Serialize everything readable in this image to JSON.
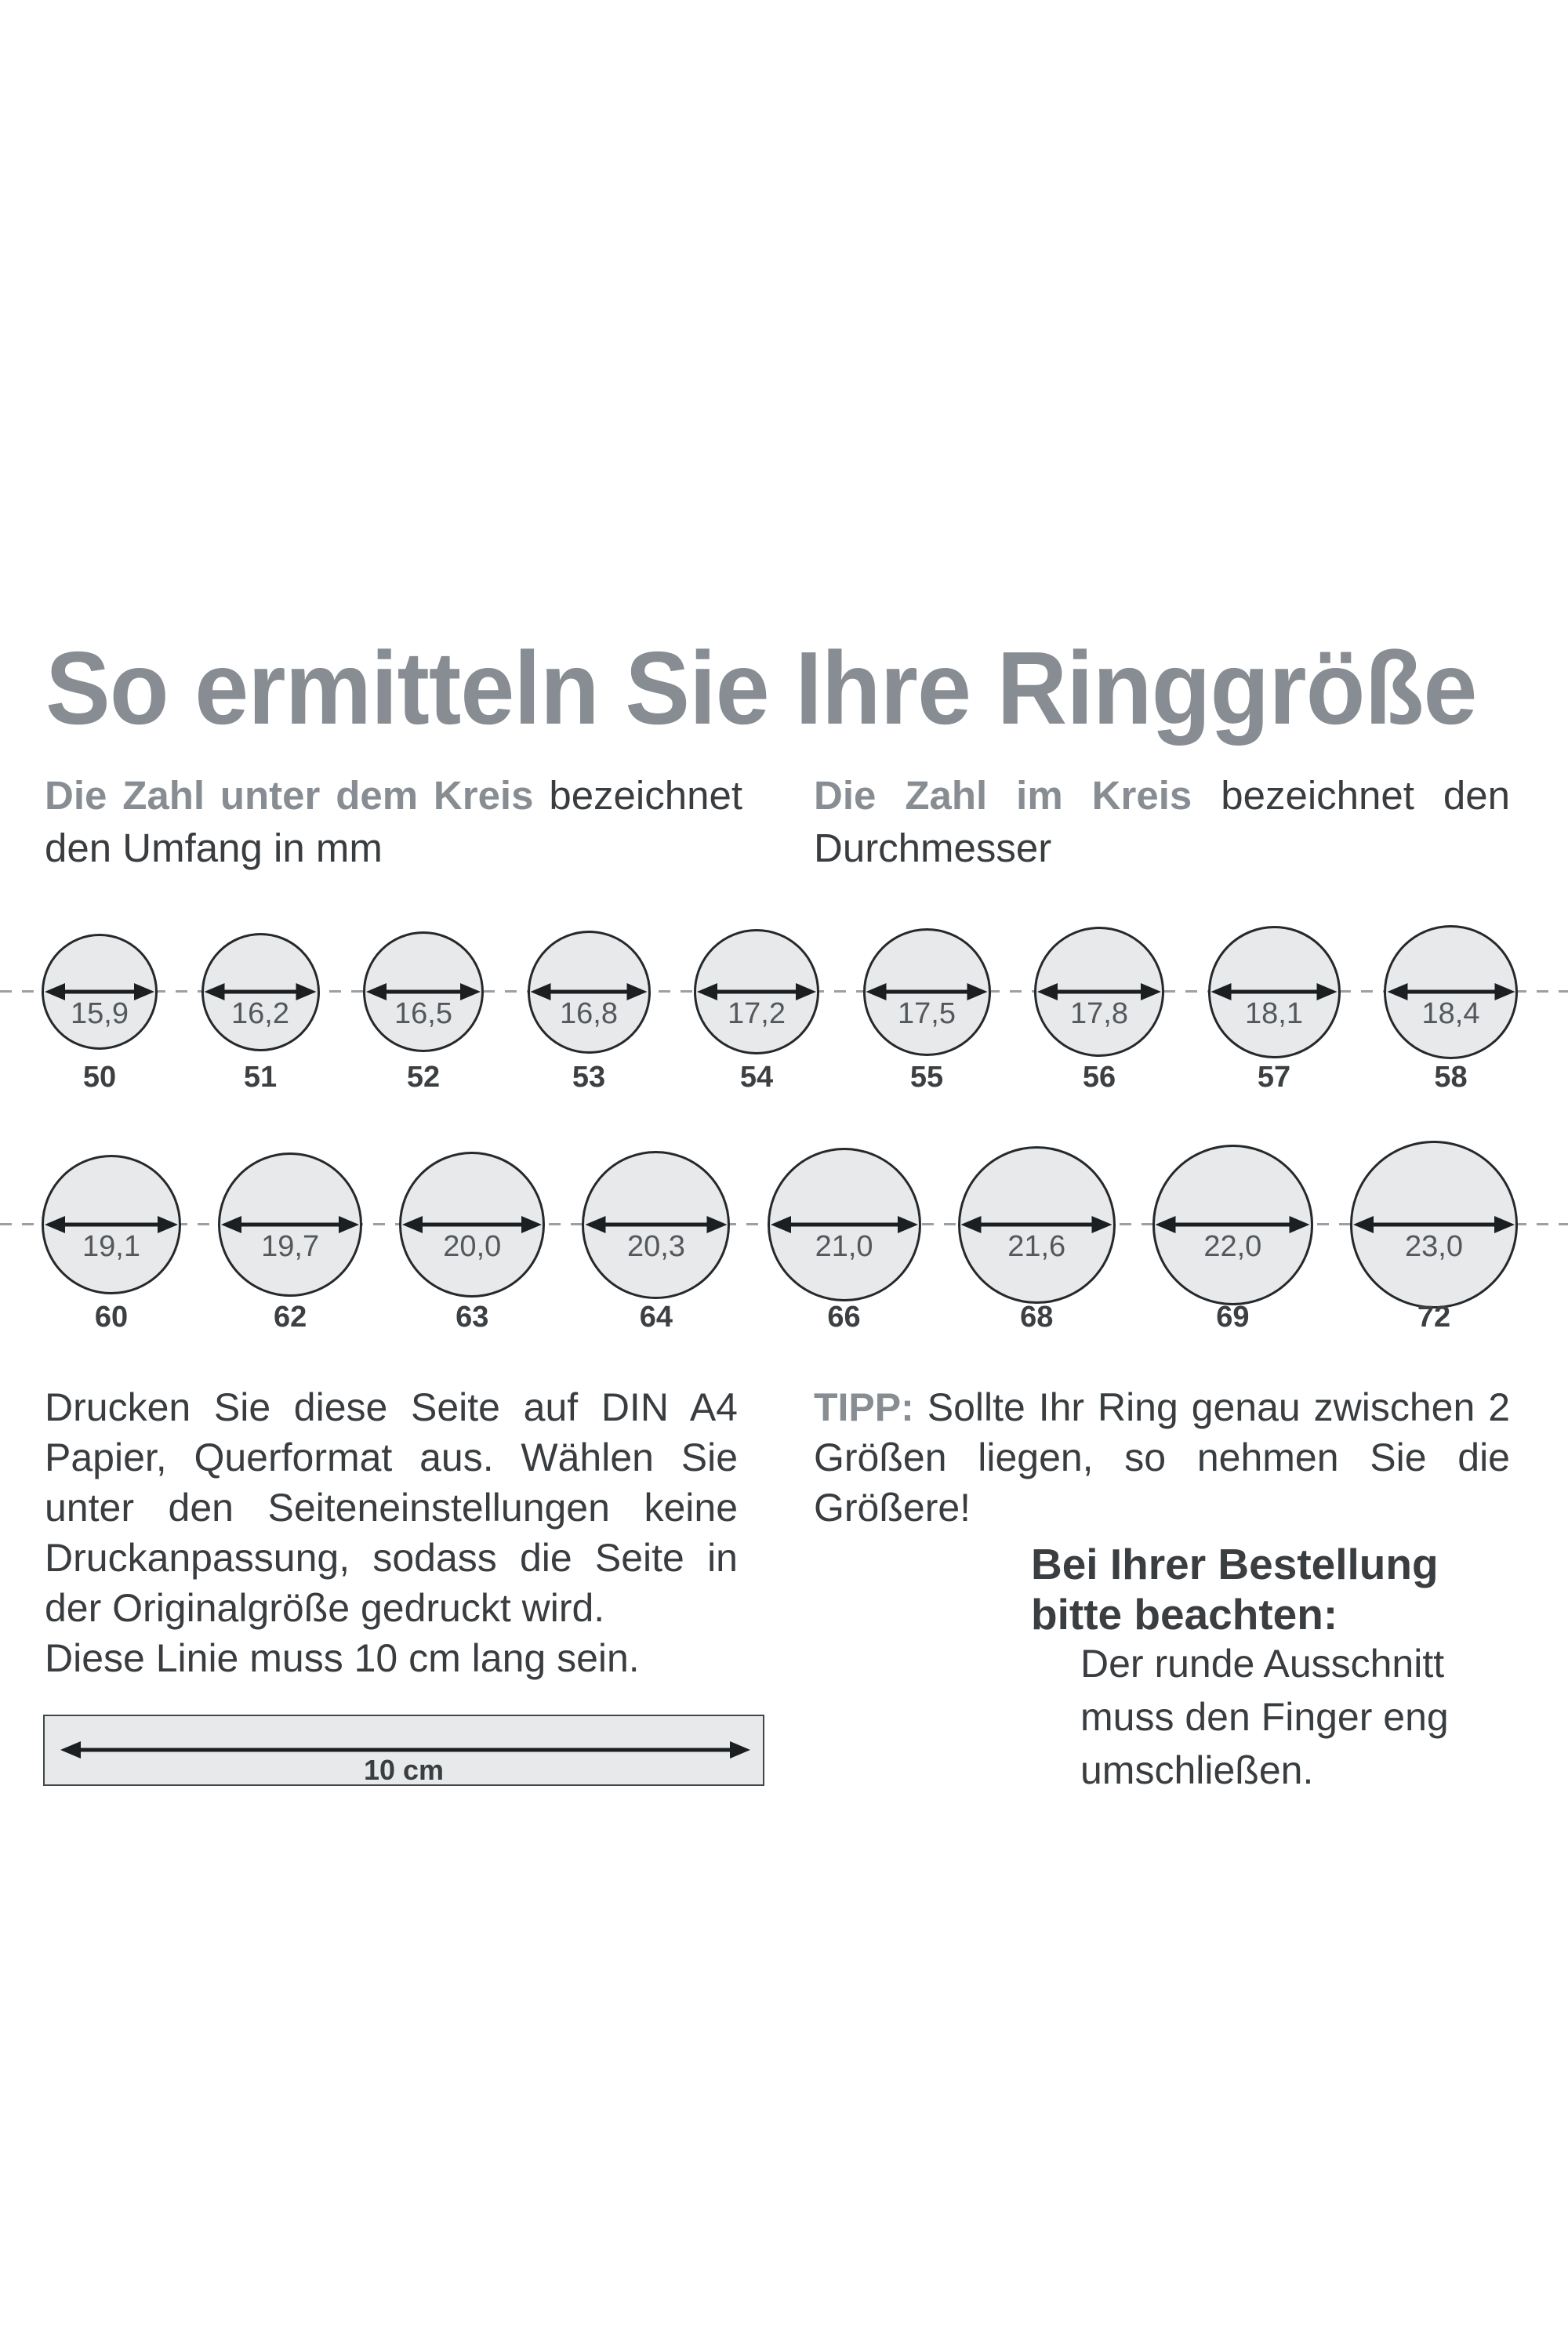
{
  "page": {
    "title": "So ermitteln Sie Ihre Ringgröße"
  },
  "legend_left": {
    "lead": "Die Zahl unter dem Kreis",
    "text": "bezeichnet den Umfang in mm"
  },
  "legend_right": {
    "lead": "Die Zahl im Kreis",
    "text": "bezeichnet den Durchmesser"
  },
  "size_rows": [
    {
      "items": [
        {
          "diameter_mm": "15,9",
          "circumference_mm": "50"
        },
        {
          "diameter_mm": "16,2",
          "circumference_mm": "51"
        },
        {
          "diameter_mm": "16,5",
          "circumference_mm": "52"
        },
        {
          "diameter_mm": "16,8",
          "circumference_mm": "53"
        },
        {
          "diameter_mm": "17,2",
          "circumference_mm": "54"
        },
        {
          "diameter_mm": "17,5",
          "circumference_mm": "55"
        },
        {
          "diameter_mm": "17,8",
          "circumference_mm": "56"
        },
        {
          "diameter_mm": "18,1",
          "circumference_mm": "57"
        },
        {
          "diameter_mm": "18,4",
          "circumference_mm": "58"
        }
      ]
    },
    {
      "items": [
        {
          "diameter_mm": "19,1",
          "circumference_mm": "60"
        },
        {
          "diameter_mm": "19,7",
          "circumference_mm": "62"
        },
        {
          "diameter_mm": "20,0",
          "circumference_mm": "63"
        },
        {
          "diameter_mm": "20,3",
          "circumference_mm": "64"
        },
        {
          "diameter_mm": "21,0",
          "circumference_mm": "66"
        },
        {
          "diameter_mm": "21,6",
          "circumference_mm": "68"
        },
        {
          "diameter_mm": "22,0",
          "circumference_mm": "69"
        },
        {
          "diameter_mm": "23,0",
          "circumference_mm": "72"
        }
      ]
    }
  ],
  "print_instructions": {
    "paragraph": "Drucken Sie diese Seite auf DIN A4 Papier, Querformat aus. Wählen Sie unter den Seiteneinstellungen keine Druckanpassung, sodass die Seite in der Originalgröße gedruckt wird.",
    "line_note": "Diese Linie muss 10 cm lang sein.",
    "ruler_label": "10 cm"
  },
  "tip": {
    "lead": "TIPP:",
    "text": "Sollte Ihr Ring genau zwischen 2 Größen liegen, so nehmen Sie die Größere!"
  },
  "order_note": {
    "heading": "Bei Ihrer Bestellung bitte beachten:",
    "body": "Der runde Ausschnitt muss den Finger eng umschließen."
  },
  "colors": {
    "accent_gray": "#878d92",
    "text_dark": "#393d40",
    "circle_fill": "#e7e9ea",
    "circle_stroke": "#26292c",
    "dash_gray": "#9ba0a4",
    "arrow_black": "#1c1f21"
  }
}
